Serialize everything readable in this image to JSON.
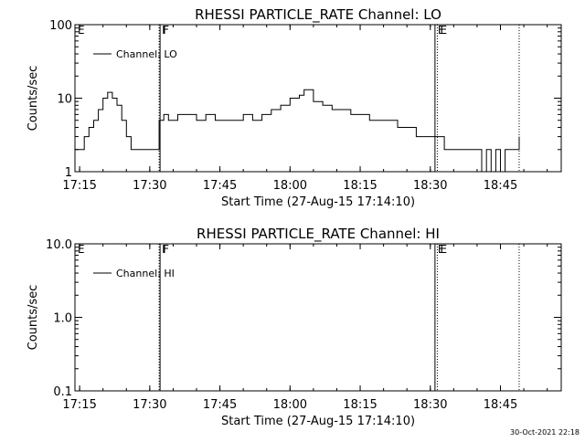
{
  "footer": {
    "timestamp": "30-Oct-2021 22:18"
  },
  "chart_data": [
    {
      "type": "line",
      "title": "RHESSI PARTICLE_RATE Channel: LO",
      "xlabel": "Start Time (27-Aug-15 17:14:10)",
      "ylabel": "Counts/sec",
      "yscale": "log",
      "ylim": [
        1,
        100
      ],
      "ytick_labels": [
        "1",
        "10",
        "100"
      ],
      "xlim": [
        "17:14",
        "18:58"
      ],
      "xtick_labels": [
        "17:15",
        "17:30",
        "17:45",
        "18:00",
        "18:15",
        "18:30",
        "18:45"
      ],
      "legend": {
        "position": "top-left",
        "entries": [
          "Channel: LO"
        ]
      },
      "event_markers": [
        {
          "label": "E",
          "time": "17:14",
          "style": "solid"
        },
        {
          "label": "F",
          "time": "17:32",
          "style": "dotted"
        },
        {
          "label": "F",
          "time": "17:32.2",
          "style": "solid"
        },
        {
          "label": "E",
          "time": "18:31",
          "style": "solid"
        },
        {
          "label": "E",
          "time": "18:31.5",
          "style": "dotted"
        },
        {
          "label": "",
          "time": "18:49",
          "style": "dotted"
        }
      ],
      "series": [
        {
          "name": "Channel: LO",
          "x": [
            "17:14",
            "17:15",
            "17:16",
            "17:17",
            "17:18",
            "17:19",
            "17:20",
            "17:21",
            "17:22",
            "17:23",
            "17:24",
            "17:25",
            "17:26",
            "17:27",
            "17:28",
            "17:29",
            "17:30",
            "17:31",
            "17:32",
            "17:33",
            "17:34",
            "17:36",
            "17:38",
            "17:40",
            "17:42",
            "17:44",
            "17:46",
            "17:48",
            "17:50",
            "17:52",
            "17:54",
            "17:56",
            "17:58",
            "18:00",
            "18:02",
            "18:03",
            "18:05",
            "18:07",
            "18:09",
            "18:11",
            "18:13",
            "18:15",
            "18:17",
            "18:19",
            "18:21",
            "18:23",
            "18:25",
            "18:27",
            "18:29",
            "18:31",
            "18:32",
            "18:33",
            "18:34",
            "18:35",
            "18:36",
            "18:38",
            "18:40",
            "18:41",
            "18:42",
            "18:43",
            "18:44",
            "18:45",
            "18:46",
            "18:47",
            "18:48",
            "18:49"
          ],
          "values": [
            2,
            2,
            3,
            4,
            5,
            7,
            10,
            12,
            10,
            8,
            5,
            3,
            2,
            2,
            2,
            2,
            2,
            2,
            5,
            6,
            5,
            6,
            6,
            5,
            6,
            5,
            5,
            5,
            6,
            5,
            6,
            7,
            8,
            10,
            11,
            13,
            9,
            8,
            7,
            7,
            6,
            6,
            5,
            5,
            5,
            4,
            4,
            3,
            3,
            3,
            3,
            2,
            2,
            2,
            2,
            2,
            2,
            1,
            2,
            1,
            2,
            1,
            2,
            2,
            2,
            3
          ]
        }
      ]
    },
    {
      "type": "line",
      "title": "RHESSI PARTICLE_RATE Channel: HI",
      "xlabel": "Start Time (27-Aug-15 17:14:10)",
      "ylabel": "Counts/sec",
      "yscale": "log",
      "ylim": [
        0.1,
        10
      ],
      "ytick_labels": [
        "0.1",
        "1.0",
        "10.0"
      ],
      "xlim": [
        "17:14",
        "18:58"
      ],
      "xtick_labels": [
        "17:15",
        "17:30",
        "17:45",
        "18:00",
        "18:15",
        "18:30",
        "18:45"
      ],
      "legend": {
        "position": "top-left",
        "entries": [
          "Channel: HI"
        ]
      },
      "event_markers": [
        {
          "label": "E",
          "time": "17:14",
          "style": "solid"
        },
        {
          "label": "F",
          "time": "17:32",
          "style": "dotted"
        },
        {
          "label": "F",
          "time": "17:32.2",
          "style": "solid"
        },
        {
          "label": "E",
          "time": "18:31",
          "style": "solid"
        },
        {
          "label": "E",
          "time": "18:31.5",
          "style": "dotted"
        },
        {
          "label": "",
          "time": "18:49",
          "style": "dotted"
        }
      ],
      "series": [
        {
          "name": "Channel: HI",
          "x": [],
          "values": []
        }
      ]
    }
  ]
}
